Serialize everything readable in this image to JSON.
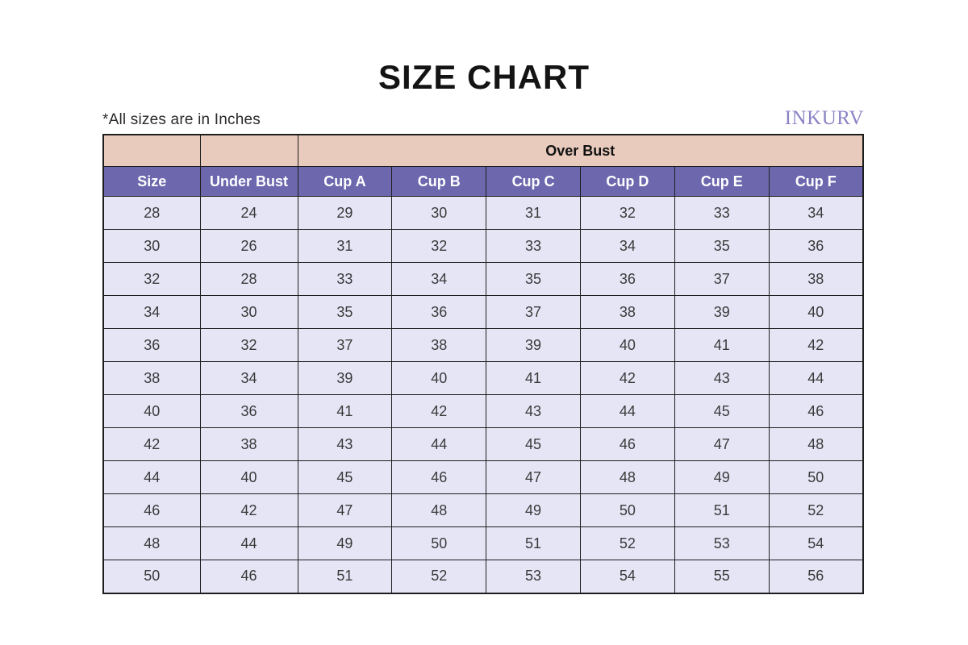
{
  "page": {
    "title": "SIZE CHART",
    "units_note": "*All sizes are in Inches",
    "brand": "INKURV"
  },
  "colors": {
    "tan_header": "#e8cbbd",
    "purple_header": "#6d68ae",
    "row_bg": "#e6e5f6",
    "border_color": "#1d1d1d",
    "brand_color": "#8a84c6",
    "header_text": "#ffffff",
    "title_text": "#141414"
  },
  "chart_data": {
    "type": "table",
    "title": "SIZE CHART",
    "group_header": "Over Bust",
    "group_header_span_columns": [
      "Cup A",
      "Cup B",
      "Cup C",
      "Cup D",
      "Cup E",
      "Cup F"
    ],
    "columns": [
      "Size",
      "Under Bust",
      "Cup A",
      "Cup B",
      "Cup C",
      "Cup D",
      "Cup E",
      "Cup F"
    ],
    "rows": [
      [
        28,
        24,
        29,
        30,
        31,
        32,
        33,
        34
      ],
      [
        30,
        26,
        31,
        32,
        33,
        34,
        35,
        36
      ],
      [
        32,
        28,
        33,
        34,
        35,
        36,
        37,
        38
      ],
      [
        34,
        30,
        35,
        36,
        37,
        38,
        39,
        40
      ],
      [
        36,
        32,
        37,
        38,
        39,
        40,
        41,
        42
      ],
      [
        38,
        34,
        39,
        40,
        41,
        42,
        43,
        44
      ],
      [
        40,
        36,
        41,
        42,
        43,
        44,
        45,
        46
      ],
      [
        42,
        38,
        43,
        44,
        45,
        46,
        47,
        48
      ],
      [
        44,
        40,
        45,
        46,
        47,
        48,
        49,
        50
      ],
      [
        46,
        42,
        47,
        48,
        49,
        50,
        51,
        52
      ],
      [
        48,
        44,
        49,
        50,
        51,
        52,
        53,
        54
      ],
      [
        50,
        46,
        51,
        52,
        53,
        54,
        55,
        56
      ]
    ]
  }
}
